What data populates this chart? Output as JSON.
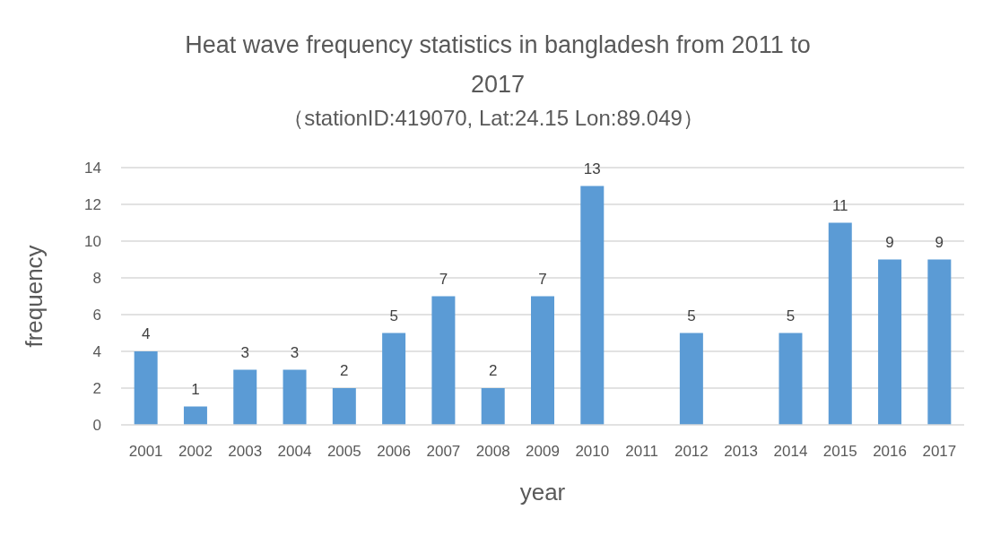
{
  "chart_data": {
    "type": "bar",
    "title": "Heat wave frequency statistics in bangladesh from 2011 to 2017",
    "subtitle": "（stationID:419070, Lat:24.15  Lon:89.049）",
    "xlabel": "year",
    "ylabel": "frequency",
    "categories": [
      "2001",
      "2002",
      "2003",
      "2004",
      "2005",
      "2006",
      "2007",
      "2008",
      "2009",
      "2010",
      "2011",
      "2012",
      "2013",
      "2014",
      "2015",
      "2016",
      "2017"
    ],
    "values": [
      4,
      1,
      3,
      3,
      2,
      5,
      7,
      2,
      7,
      13,
      null,
      5,
      null,
      5,
      11,
      9,
      9
    ],
    "color": "#5b9bd5",
    "ylim": [
      0,
      14
    ],
    "yticks": [
      0,
      2,
      4,
      6,
      8,
      10,
      12,
      14
    ],
    "grid": "y",
    "data_labels": true
  }
}
